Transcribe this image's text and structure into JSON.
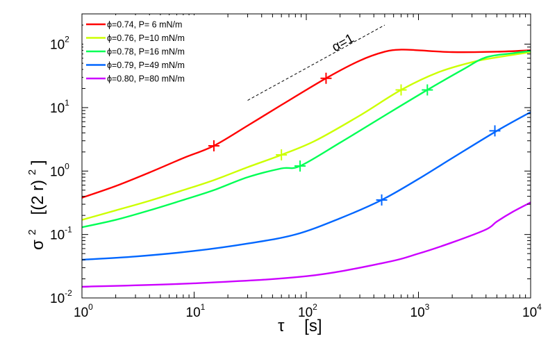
{
  "chart_data": {
    "type": "line",
    "xscale": "log",
    "yscale": "log",
    "xlim": [
      1,
      10000
    ],
    "ylim": [
      0.01,
      300
    ],
    "xlabel": {
      "symbol": "τ",
      "unit": "[s]"
    },
    "ylabel": {
      "symbol": "σ",
      "symbol_exp": "2",
      "unit": "[(2 r)",
      "unit_exp": "2",
      "unit_close": "]"
    },
    "x_ticks": [
      {
        "value": 1,
        "base": "10",
        "exp": "0"
      },
      {
        "value": 10,
        "base": "10",
        "exp": "1"
      },
      {
        "value": 100,
        "base": "10",
        "exp": "2"
      },
      {
        "value": 1000,
        "base": "10",
        "exp": "3"
      },
      {
        "value": 10000,
        "base": "10",
        "exp": "4"
      }
    ],
    "y_ticks": [
      {
        "value": 0.01,
        "base": "10",
        "exp": "-2"
      },
      {
        "value": 0.1,
        "base": "10",
        "exp": "-1"
      },
      {
        "value": 1,
        "base": "10",
        "exp": "0"
      },
      {
        "value": 10,
        "base": "10",
        "exp": "1"
      },
      {
        "value": 100,
        "base": "10",
        "exp": "2"
      }
    ],
    "legend_position": "top-left",
    "series": [
      {
        "name": "ϕ=0.74, P= 6 mN/m",
        "color": "#ff0000",
        "x": [
          1,
          2,
          4,
          8,
          15,
          30,
          60,
          150,
          300,
          500,
          700,
          1000,
          2000,
          5000,
          10000
        ],
        "y": [
          0.38,
          0.58,
          0.95,
          1.6,
          2.5,
          5.2,
          11,
          29,
          55,
          76,
          82,
          80,
          75,
          76,
          80
        ],
        "marker": {
          "x": 150,
          "y": 29
        }
      },
      {
        "name": "ϕ=0.76, P=10 mN/m",
        "color": "#ccff00",
        "x": [
          1,
          2,
          4,
          8,
          15,
          30,
          60,
          120,
          300,
          700,
          1500,
          3000,
          5000,
          10000
        ],
        "y": [
          0.17,
          0.24,
          0.34,
          0.5,
          0.72,
          1.15,
          1.8,
          3.0,
          7.5,
          19,
          36,
          52,
          62,
          75
        ],
        "marker": {
          "x": 60,
          "y": 1.8
        }
      },
      {
        "name": "ϕ=0.78, P=16 mN/m",
        "color": "#00ff55",
        "x": [
          1,
          2,
          4,
          8,
          15,
          30,
          60,
          88,
          200,
          500,
          1200,
          2500,
          4000,
          7000,
          10000
        ],
        "y": [
          0.13,
          0.17,
          0.24,
          0.35,
          0.5,
          0.8,
          1.1,
          1.2,
          2.8,
          7.5,
          19,
          40,
          62,
          72,
          78
        ],
        "marker": {
          "x": 88,
          "y": 1.2
        }
      },
      {
        "name": "ϕ=0.79, P=49 mN/m",
        "color": "#0066ff",
        "x": [
          1,
          3,
          10,
          30,
          80,
          200,
          470,
          1000,
          2000,
          5000,
          10000
        ],
        "y": [
          0.04,
          0.045,
          0.055,
          0.072,
          0.1,
          0.18,
          0.35,
          0.75,
          1.6,
          4.3,
          8.5
        ],
        "marker": {
          "x": 470,
          "y": 0.35
        }
      },
      {
        "name": "ϕ=0.80, P=80 mN/m",
        "color": "#cc00ff",
        "x": [
          1,
          10,
          100,
          500,
          1000,
          2000,
          4000,
          5000,
          7000,
          10000
        ],
        "y": [
          0.015,
          0.017,
          0.022,
          0.036,
          0.05,
          0.075,
          0.12,
          0.16,
          0.23,
          0.32
        ],
        "marker": null
      }
    ],
    "extra_markers": [
      {
        "series": 0,
        "x": 15,
        "y": 2.5
      },
      {
        "series": 1,
        "x": 700,
        "y": 19
      },
      {
        "series": 2,
        "x": 1200,
        "y": 19
      },
      {
        "series": 3,
        "x": 4800,
        "y": 4.3
      }
    ],
    "guide_line": {
      "x": [
        30,
        500
      ],
      "y": [
        13,
        200
      ],
      "style": "dashed",
      "color": "#000000"
    },
    "annotation": {
      "text": "α=1",
      "x": 170,
      "y": 65,
      "slope": 1
    }
  }
}
